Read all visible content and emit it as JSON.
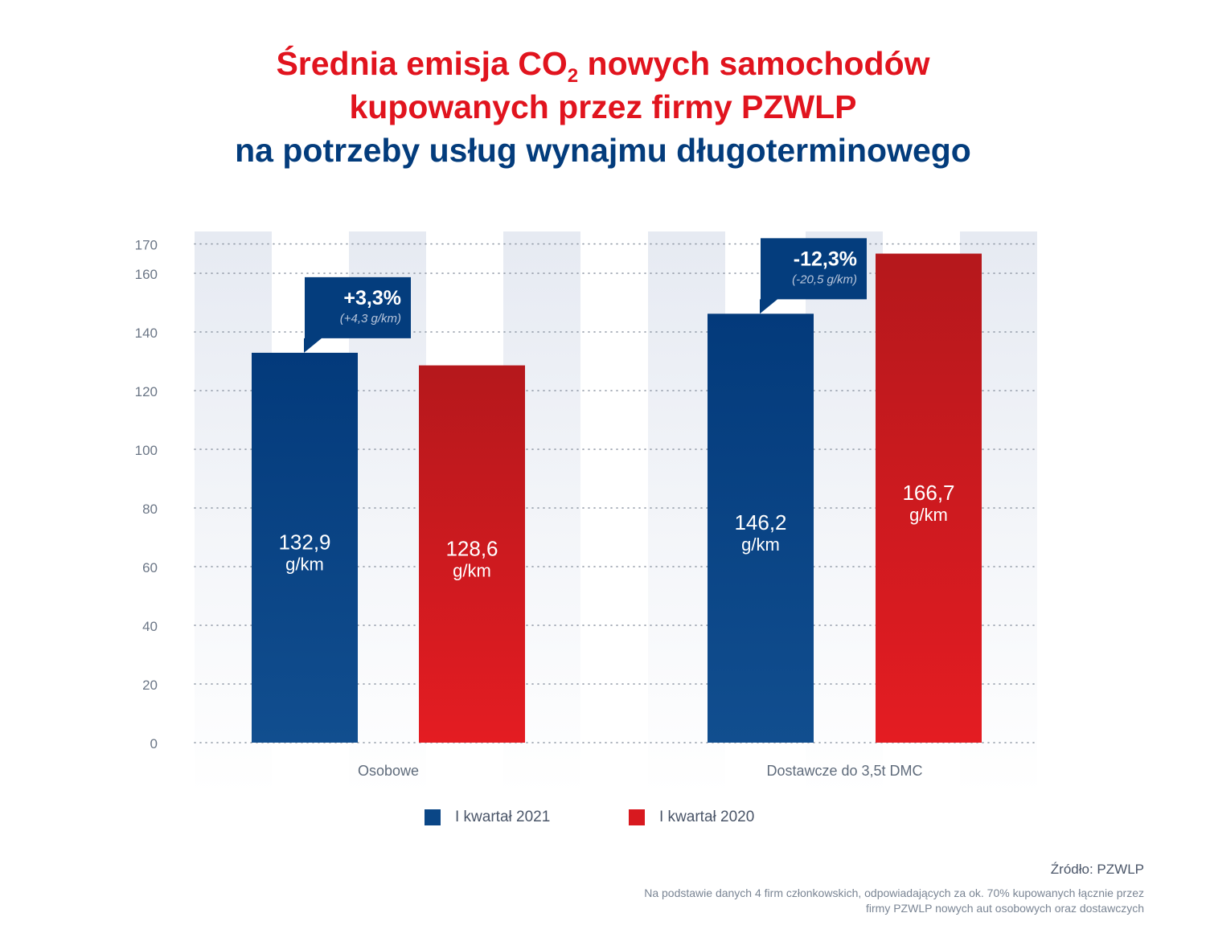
{
  "title": {
    "line1_a": "Średnia emisja CO",
    "line1_sub": "2",
    "line1_b": " nowych samochodów",
    "line2": "kupowanych przez firmy PZWLP",
    "line3": "na potrzeby usług wynajmu długoterminowego"
  },
  "colors": {
    "series_2021": "#043d7d",
    "series_2020": "#d0181d",
    "title_red": "#e1141e",
    "title_navy": "#033c7c",
    "band": "#e8ecf3"
  },
  "chart_data": {
    "type": "bar",
    "categories": [
      "Osobowe",
      "Dostawcze do 3,5t DMC"
    ],
    "series": [
      {
        "name": "I kwartał 2021",
        "values": [
          132.9,
          146.2
        ],
        "labels": [
          "132,9",
          "146,2"
        ]
      },
      {
        "name": "I kwartał 2020",
        "values": [
          128.6,
          166.7
        ],
        "labels": [
          "128,6",
          "166,7"
        ]
      }
    ],
    "value_unit": "g/km",
    "ylim": [
      0,
      170
    ],
    "yticks": [
      0,
      20,
      40,
      60,
      80,
      100,
      120,
      140,
      160,
      170
    ],
    "grid": true,
    "legend": "bottom",
    "callouts": [
      {
        "category_index": 0,
        "text": "+3,3%",
        "subtext": "(+4,3 g/km)"
      },
      {
        "category_index": 1,
        "text": "-12,3%",
        "subtext": "(-20,5 g/km)"
      }
    ]
  },
  "footer": {
    "source": "Źródło: PZWLP",
    "note_line1": "Na podstawie danych 4 firm członkowskich, odpowiadających za ok. 70% kupowanych łącznie przez",
    "note_line2": "firmy PZWLP nowych aut osobowych oraz dostawczych"
  }
}
